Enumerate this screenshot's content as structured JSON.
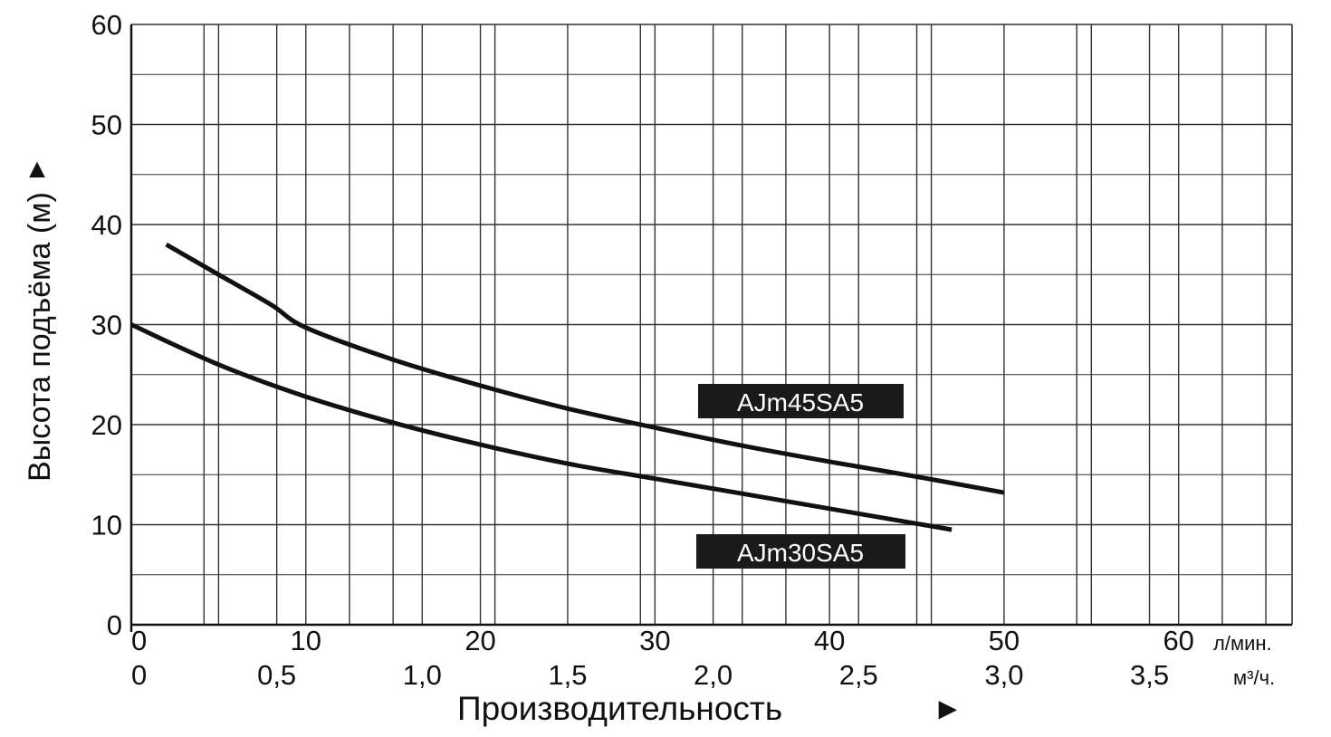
{
  "chart_data": {
    "type": "line",
    "title": "",
    "ylabel": "Высота подъёма (м)",
    "ylabel_arrow": "▲",
    "xlabel": "Производительность",
    "xlabel_arrow": "►",
    "ylim": [
      0,
      60
    ],
    "xlim": [
      0,
      66.5
    ],
    "grid": true,
    "yticks": [
      0,
      10,
      20,
      30,
      40,
      50,
      60
    ],
    "xticks_lmin": [
      0,
      10,
      20,
      30,
      40,
      50,
      60
    ],
    "x_unit_lmin": "л/мин.",
    "xticks_m3h": [
      {
        "label": "0",
        "lmin": 0
      },
      {
        "label": "0,5",
        "lmin": 8.333
      },
      {
        "label": "1,0",
        "lmin": 16.667
      },
      {
        "label": "1,5",
        "lmin": 25
      },
      {
        "label": "2,0",
        "lmin": 33.333
      },
      {
        "label": "2,5",
        "lmin": 41.667
      },
      {
        "label": "3,0",
        "lmin": 50
      },
      {
        "label": "3,5",
        "lmin": 58.333
      }
    ],
    "x_unit_m3h": "м³/ч.",
    "series": [
      {
        "name": "AJm45SA5",
        "x": [
          2,
          5,
          8,
          10,
          15,
          20,
          25,
          30,
          35,
          40,
          45,
          50
        ],
        "y": [
          38,
          35,
          32,
          29.7,
          26.5,
          23.9,
          21.6,
          19.7,
          17.9,
          16.3,
          14.8,
          13.2
        ]
      },
      {
        "name": "AJm30SA5",
        "x": [
          0,
          5,
          10,
          15,
          20,
          25,
          30,
          35,
          40,
          47
        ],
        "y": [
          30,
          26,
          22.8,
          20.2,
          18,
          16.1,
          14.6,
          13.1,
          11.6,
          9.5
        ]
      }
    ],
    "labels": [
      "AJm45SA5",
      "AJm30SA5"
    ],
    "colors": {
      "line": "#111111",
      "grid": "#333333",
      "label_bg": "#1a1a1a",
      "label_text": "#ffffff"
    }
  }
}
